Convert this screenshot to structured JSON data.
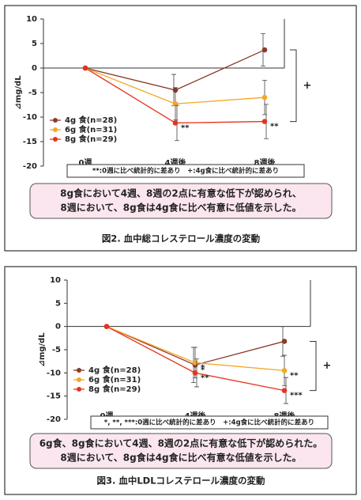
{
  "chart_data": [
    {
      "type": "line",
      "y_label": "⊿mg/dL",
      "categories": [
        "0週",
        "4週後",
        "8週後"
      ],
      "ylim": [
        -20,
        10
      ],
      "yticks": [
        -20,
        -15,
        -10,
        -5,
        0,
        5,
        10
      ],
      "series": [
        {
          "name": "4g 食(n=28)",
          "color": "#8b3a2a",
          "values": [
            0,
            -4.5,
            3.7
          ],
          "errors": [
            0,
            3.2,
            3.3
          ],
          "point_labels": [
            null,
            null,
            null
          ]
        },
        {
          "name": "6g 食(n=31)",
          "color": "#f5a623",
          "values": [
            0,
            -7.3,
            -6.0
          ],
          "errors": [
            0,
            3.3,
            3.5
          ],
          "point_labels": [
            null,
            null,
            null
          ]
        },
        {
          "name": "8g 食(n=29)",
          "color": "#e8321e",
          "values": [
            0,
            -11.2,
            -10.9
          ],
          "errors": [
            0,
            3.6,
            3.5
          ],
          "point_labels": [
            null,
            "**",
            "**"
          ]
        }
      ],
      "bracket_label": "+",
      "note": "**:0週に比べ統計的に差あり　+:4g食に比べ統計的に差あり",
      "summary": [
        "8g食において4週、8週の2点に有意な低下が認められ、",
        "8週において、8g食は4g食に比べ有意に低値を示した。"
      ],
      "caption": "図2. 血中総コレステロール濃度の変動"
    },
    {
      "type": "line",
      "y_label": "⊿mg/dL",
      "categories": [
        "0週",
        "4週後",
        "8週後"
      ],
      "ylim": [
        -20,
        10
      ],
      "yticks": [
        -20,
        -15,
        -10,
        -5,
        0,
        5,
        10
      ],
      "series": [
        {
          "name": "4g 食(n=28)",
          "color": "#8b3a2a",
          "values": [
            0,
            -8.3,
            -3.2
          ],
          "errors": [
            0,
            3.8,
            3.2
          ],
          "point_labels": [
            null,
            "*",
            null
          ]
        },
        {
          "name": "6g 食(n=31)",
          "color": "#f5a623",
          "values": [
            0,
            -7.8,
            -9.5
          ],
          "errors": [
            0,
            3.3,
            3.3
          ],
          "point_labels": [
            null,
            "*",
            "**"
          ]
        },
        {
          "name": "8g 食(n=29)",
          "color": "#e8321e",
          "values": [
            0,
            -10.0,
            -13.8
          ],
          "errors": [
            0,
            3.0,
            2.8
          ],
          "point_labels": [
            null,
            "**",
            "***"
          ]
        }
      ],
      "bracket_label": "+",
      "note": "*, **, ***:0週に比べ統計的に差あり　+:4g食に比べ統計的に差あり",
      "summary": [
        "6g食、8g食において4週、8週の2点に有意な低下が認められた。",
        "8週において、8g食は4g食に比べ有意な低値を示した。"
      ],
      "caption": "図3. 血中LDLコレステロール濃度の変動"
    }
  ]
}
